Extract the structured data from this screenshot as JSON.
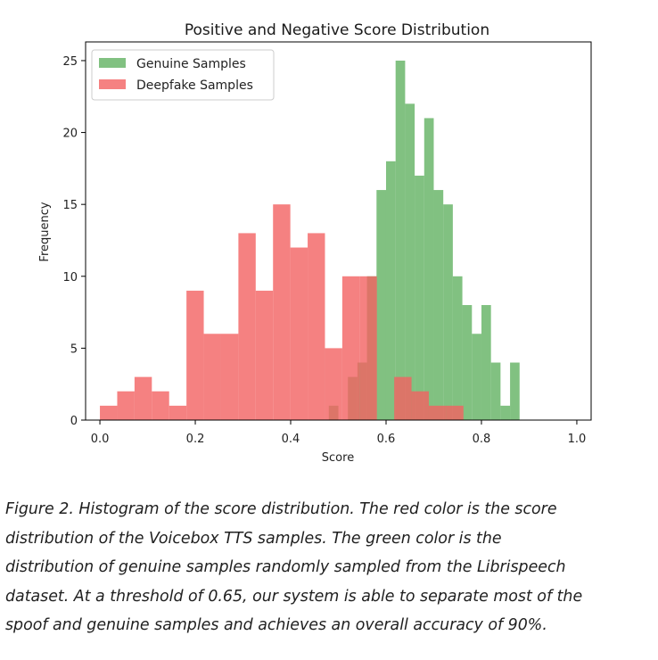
{
  "chart_data": {
    "type": "histogram",
    "title": "Positive and Negative Score Distribution",
    "xlabel": "Score",
    "ylabel": "Frequency",
    "xlim": [
      -0.03,
      1.03
    ],
    "ylim": [
      0,
      26.3
    ],
    "xticks": [
      "0.0",
      "0.2",
      "0.4",
      "0.6",
      "0.8",
      "1.0"
    ],
    "yticks": [
      "0",
      "5",
      "10",
      "15",
      "20",
      "25"
    ],
    "legend_position": "top-left",
    "series": [
      {
        "name": "Genuine Samples",
        "color": "#4ca64c",
        "bin_start": 0.46,
        "bin_width": 0.02,
        "values": [
          0,
          1,
          0,
          3,
          4,
          10,
          16,
          18,
          25,
          22,
          17,
          21,
          16,
          15,
          10,
          8,
          6,
          8,
          4,
          1,
          4
        ]
      },
      {
        "name": "Deepfake Samples",
        "color": "#f26161",
        "bin_start": 0.0,
        "bin_width": 0.0363,
        "values": [
          1,
          2,
          3,
          2,
          1,
          9,
          6,
          6,
          13,
          9,
          15,
          12,
          13,
          5,
          10,
          10,
          0,
          3,
          2,
          1,
          1
        ]
      }
    ]
  },
  "caption": {
    "lines": [
      "Figure 2. Histogram of the score distribution. The red color is the score",
      "distribution of the Voicebox TTS samples. The green color is the",
      "distribution of genuine samples randomly sampled from the Librispeech",
      "dataset. At a threshold of 0.65, our system is able to separate most of the",
      "spoof and genuine samples and achieves an overall accuracy of 90%."
    ]
  }
}
